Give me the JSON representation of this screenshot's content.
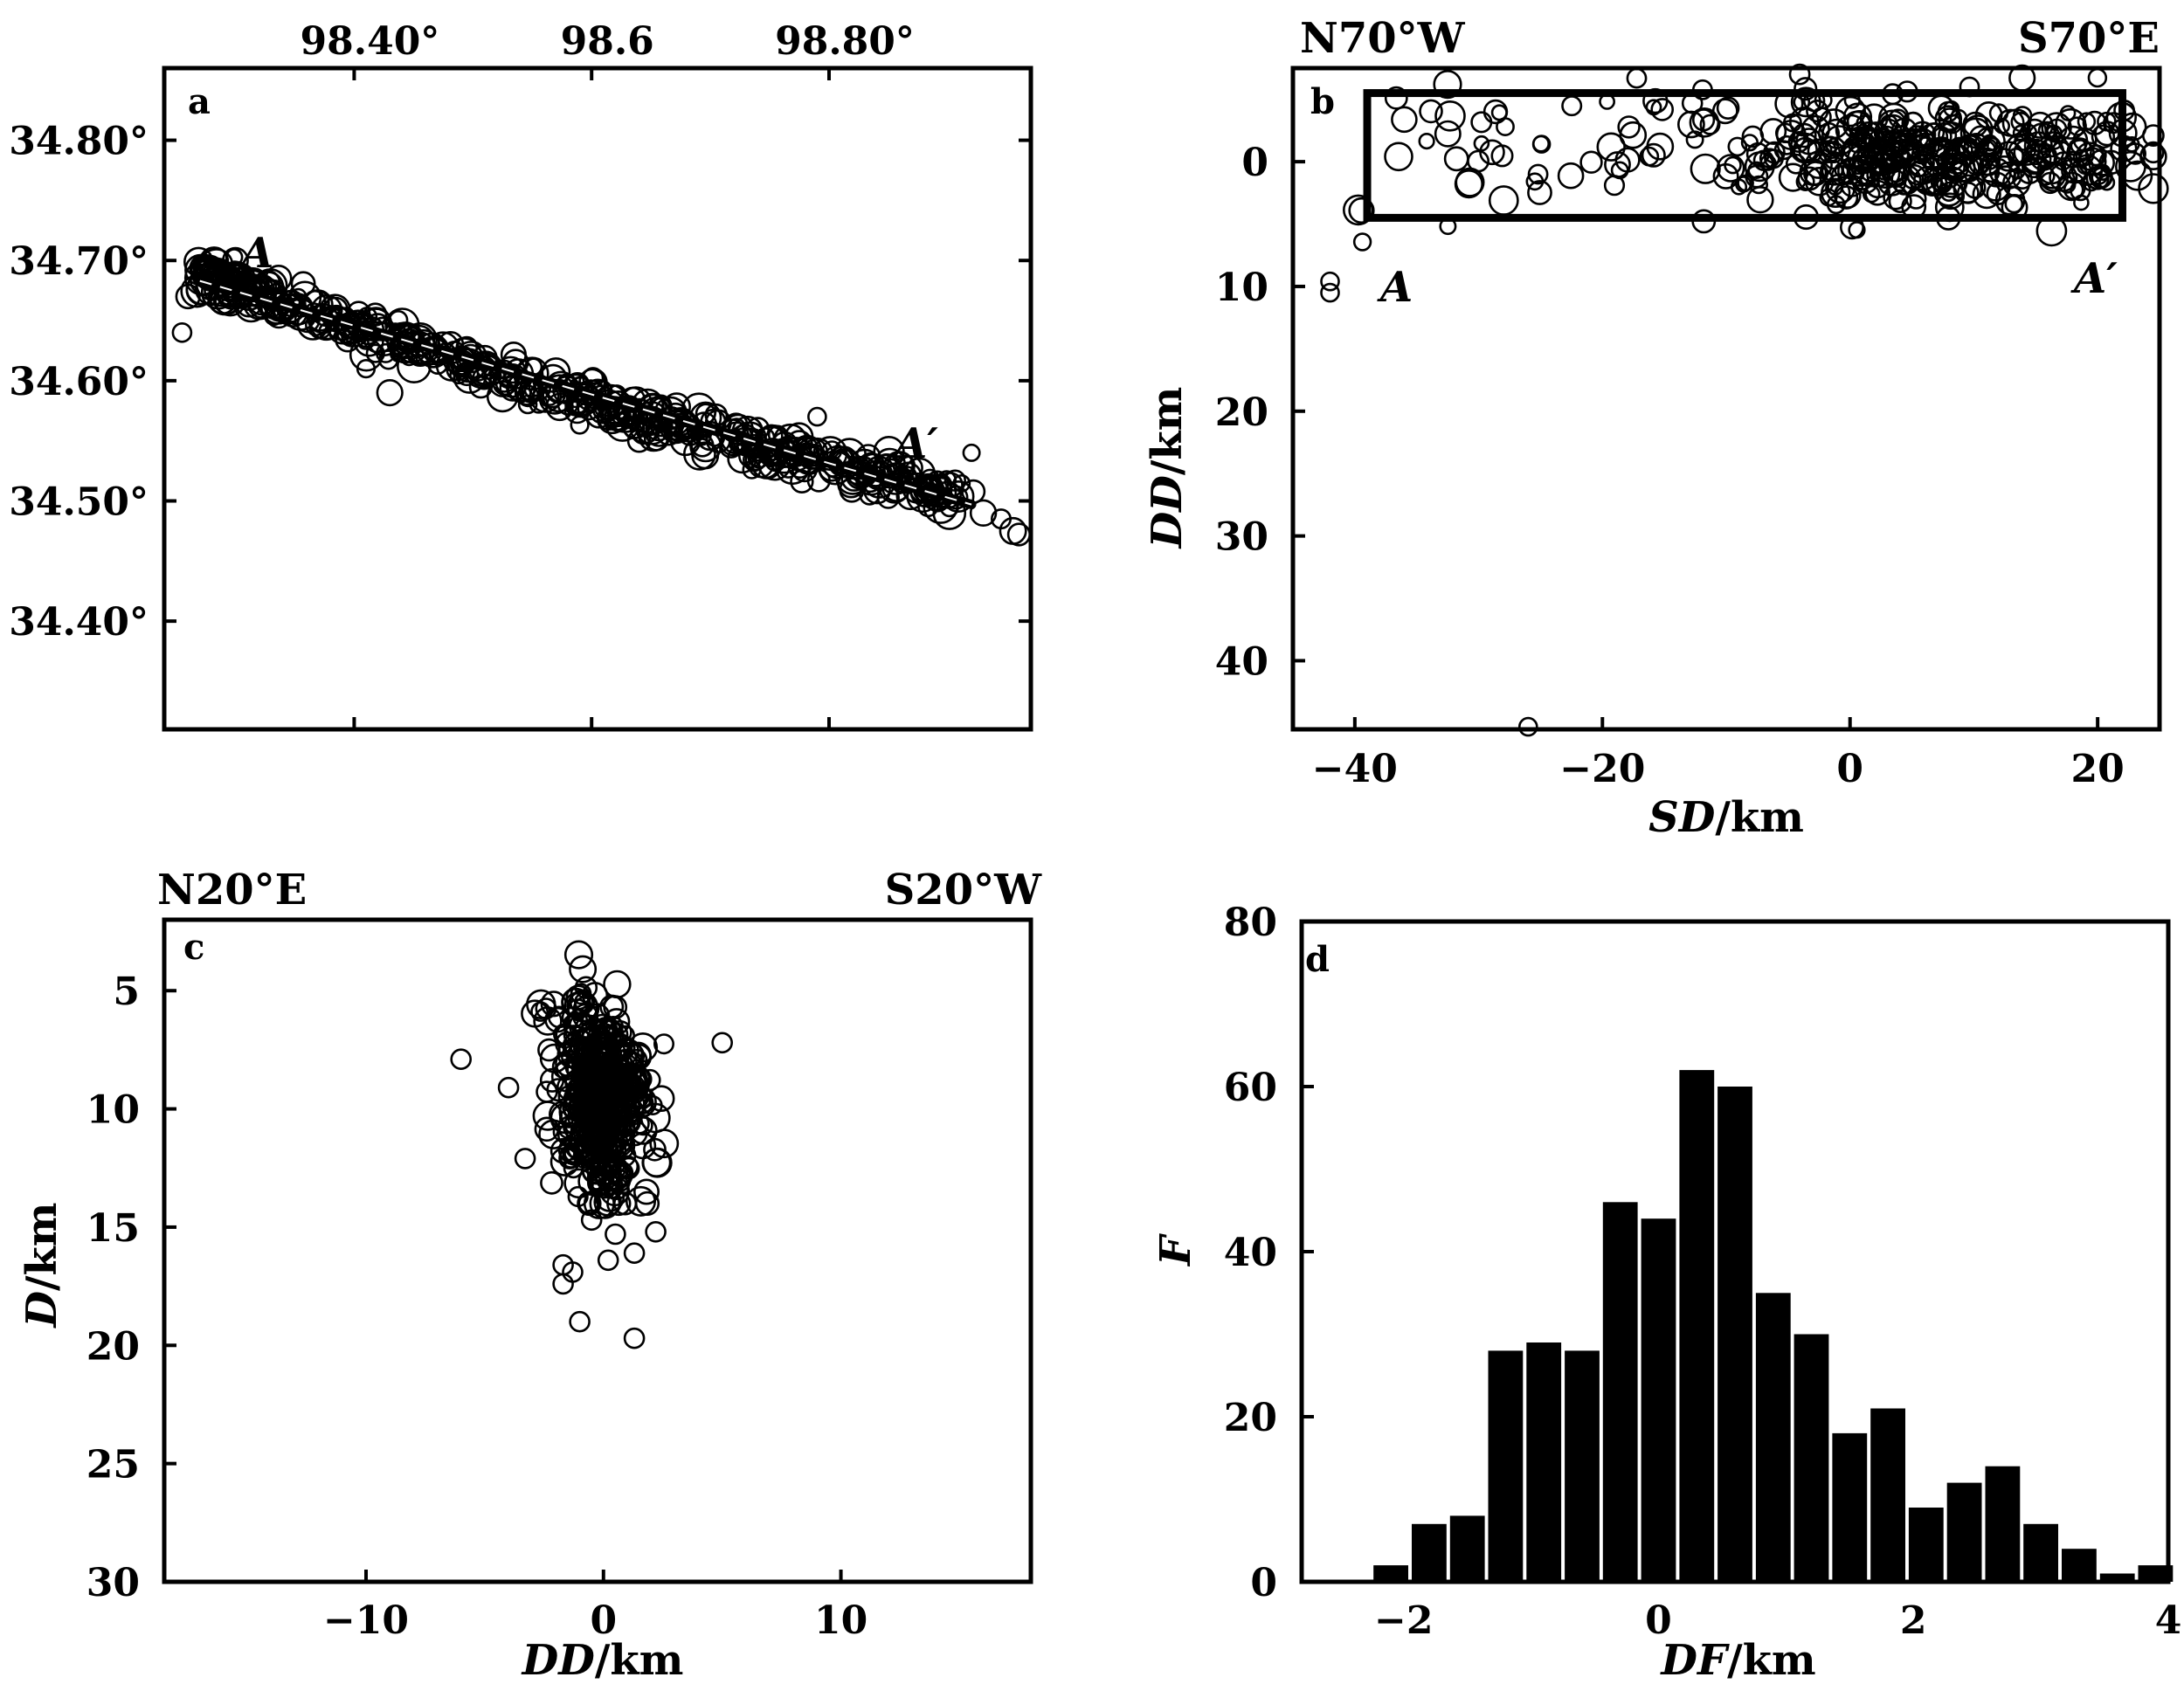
{
  "chart_data": [
    {
      "id": "a",
      "type": "scatter",
      "panel_label": "a",
      "x_ticks": [
        "98.40°",
        "98.6",
        "98.80°"
      ],
      "x_tick_values": [
        98.4,
        98.6,
        98.8
      ],
      "y_ticks": [
        "34.80°",
        "34.70°",
        "34.60°",
        "34.50°",
        "34.40°"
      ],
      "y_tick_values": [
        34.8,
        34.7,
        34.6,
        34.5,
        34.4
      ],
      "xlim": [
        98.24,
        98.97
      ],
      "ylim": [
        34.31,
        34.86
      ],
      "profile": {
        "start": [
          98.27,
          34.683
        ],
        "end": [
          98.92,
          34.497
        ],
        "start_label": "A",
        "end_label": "A′"
      },
      "annotations": [
        "A",
        "A′"
      ]
    },
    {
      "id": "b",
      "type": "scatter",
      "panel_label": "b",
      "xlabel_italic": "SD",
      "xlabel_unit": "/km",
      "ylabel_italic": "DD",
      "ylabel_unit": "/km",
      "x_ticks": [
        "−40",
        "−20",
        "0",
        "20"
      ],
      "x_tick_values": [
        -40,
        -20,
        0,
        20
      ],
      "y_ticks": [
        "0",
        "10",
        "20",
        "30",
        "40"
      ],
      "y_tick_values": [
        0,
        10,
        20,
        30,
        40
      ],
      "xlim": [
        -45,
        25
      ],
      "ylim": [
        -7.5,
        45.5
      ],
      "y_inverted": true,
      "corner_left": "N70°W",
      "corner_right": "S70°E",
      "box": {
        "x": [
          -39,
          22
        ],
        "y": [
          -5.5,
          4.5
        ]
      },
      "annotations": [
        "A",
        "A′"
      ],
      "outliers": [
        [
          -26,
          45.3
        ],
        [
          -42,
          10.5
        ],
        [
          -42,
          9.6
        ]
      ]
    },
    {
      "id": "c",
      "type": "scatter",
      "panel_label": "c",
      "xlabel_italic": "DD",
      "xlabel_unit": "/km",
      "ylabel_italic": "D",
      "ylabel_unit": "/km",
      "x_ticks": [
        "−10",
        "0",
        "10"
      ],
      "x_tick_values": [
        -10,
        0,
        10
      ],
      "y_ticks": [
        "5",
        "10",
        "15",
        "20",
        "25",
        "30"
      ],
      "y_tick_values": [
        5,
        10,
        15,
        20,
        25,
        30
      ],
      "xlim": [
        -18.5,
        18
      ],
      "ylim": [
        2,
        30
      ],
      "y_inverted": true,
      "corner_left": "N20°E",
      "corner_right": "S20°W",
      "outliers": [
        [
          -6,
          7.9
        ],
        [
          5,
          7.2
        ],
        [
          -4,
          9.1
        ],
        [
          -3.3,
          12.1
        ],
        [
          -1,
          19
        ],
        [
          1.3,
          19.7
        ],
        [
          2.2,
          15.2
        ],
        [
          1.3,
          16.1
        ],
        [
          0.5,
          15.3
        ],
        [
          0.2,
          16.4
        ],
        [
          -1.7,
          16.6
        ],
        [
          -1.7,
          17.4
        ],
        [
          -1.3,
          16.9
        ],
        [
          -0.5,
          14.7
        ]
      ]
    },
    {
      "id": "d",
      "type": "bar",
      "panel_label": "d",
      "xlabel_italic": "DF",
      "xlabel_unit": "/km",
      "ylabel_italic": "F",
      "x_ticks": [
        "−2",
        "0",
        "2",
        "4"
      ],
      "x_tick_values": [
        -2,
        0,
        2,
        4
      ],
      "y_ticks": [
        "0",
        "20",
        "40",
        "60",
        "80"
      ],
      "y_tick_values": [
        0,
        20,
        40,
        60,
        80
      ],
      "xlim": [
        -2.8,
        4
      ],
      "ylim": [
        0,
        80
      ],
      "bin_width": 0.3,
      "bin_centers": [
        -2.1,
        -1.8,
        -1.5,
        -1.2,
        -0.9,
        -0.6,
        -0.3,
        0.0,
        0.3,
        0.6,
        0.9,
        1.2,
        1.5,
        1.8,
        2.1,
        2.4,
        2.7,
        3.0,
        3.3,
        3.6,
        3.9
      ],
      "values": [
        2,
        7,
        8,
        28,
        29,
        28,
        46,
        44,
        62,
        60,
        35,
        30,
        18,
        21,
        9,
        12,
        14,
        7,
        4,
        1,
        2
      ]
    }
  ]
}
